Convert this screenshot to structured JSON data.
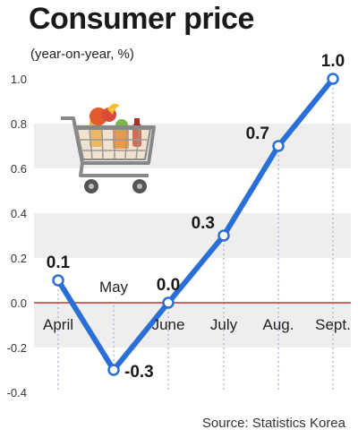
{
  "title": "Consumer price",
  "subtitle": "(year-on-year, %)",
  "source": "Source: Statistics Korea",
  "icons": {
    "illustration": "shopping-cart-with-groceries"
  },
  "colors": {
    "line": "#2a6fd6",
    "zero_line": "#c0392b",
    "band": "#eeeeee",
    "text": "#1a1a1a"
  },
  "chart_data": {
    "type": "line",
    "title": "Consumer price",
    "subtitle": "(year-on-year, %)",
    "categories": [
      "April",
      "May",
      "June",
      "July",
      "Aug.",
      "Sept."
    ],
    "series": [
      {
        "values": [
          0.1,
          -0.3,
          0.0,
          0.3,
          0.7,
          1.0
        ]
      }
    ],
    "data_labels": [
      "0.1",
      "-0.3",
      "0.0",
      "0.3",
      "0.7",
      "1.0"
    ],
    "yticks": [
      "1.0",
      "0.8",
      "0.6",
      "0.4",
      "0.2",
      "0.0",
      "-0.2",
      "-0.4"
    ],
    "ylim": [
      -0.4,
      1.0
    ],
    "grid": "alternating horizontal bands",
    "legend": "none"
  }
}
